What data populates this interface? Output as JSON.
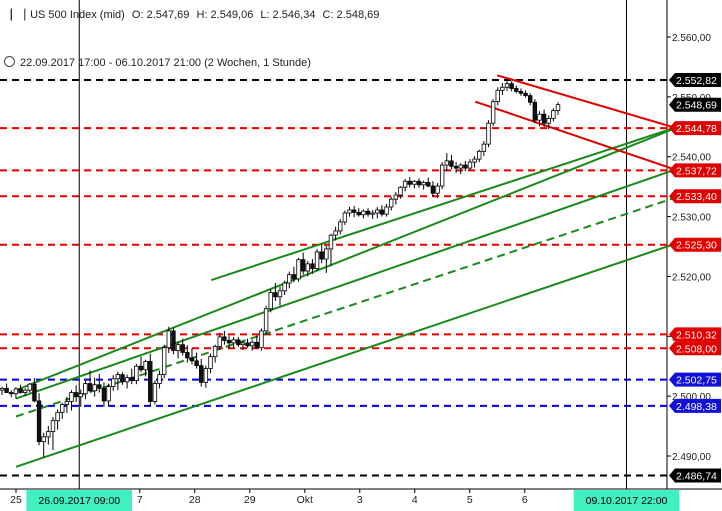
{
  "header": {
    "instrument": "US 500 Index (mid)",
    "open": "O: 2.547,69",
    "high": "H: 2.549,06",
    "low": "L: 2.546,34",
    "close": "C: 2.548,69"
  },
  "subheader": {
    "range": "22.09.2017 17:00 - 06.10.2017 21:00",
    "period": "(2 Wochen, 1 Stunde)"
  },
  "chart_data": {
    "type": "candlestick",
    "y_axis": {
      "min": 2485.0,
      "max": 2565.0,
      "ticks": [
        2490,
        2500,
        2510,
        2520,
        2530,
        2540,
        2550,
        2560
      ],
      "tick_labels": [
        "2.490,00",
        "2.500,00",
        "2.510,00",
        "2.520,00",
        "2.530,00",
        "2.540,00",
        "2.550,00",
        "2.560,00"
      ]
    },
    "x_axis": {
      "labels": [
        {
          "t": 0,
          "text": "25"
        },
        {
          "t": 2.25,
          "text": "7"
        },
        {
          "t": 3.25,
          "text": "28"
        },
        {
          "t": 4.25,
          "text": "29"
        },
        {
          "t": 5.25,
          "text": "Okt"
        },
        {
          "t": 6.25,
          "text": "3"
        },
        {
          "t": 7.25,
          "text": "4"
        },
        {
          "t": 8.25,
          "text": "5"
        },
        {
          "t": 9.25,
          "text": "6"
        }
      ],
      "markers": [
        {
          "t": 1.15,
          "text": "26.09.2017 09:00"
        },
        {
          "t": 11.1,
          "text": "09.10.2017 22:00"
        }
      ]
    },
    "horizontal_levels": [
      {
        "value": 2552.82,
        "label": "2.552,82",
        "color": "#000000",
        "tag_bg": "#000000"
      },
      {
        "value": 2548.69,
        "label": "2.548,69",
        "color": null,
        "tag_bg": "#000000"
      },
      {
        "value": 2544.78,
        "label": "2.544,78",
        "color": "#e00000",
        "tag_bg": "#e00000"
      },
      {
        "value": 2537.72,
        "label": "2.537,72",
        "color": "#e00000",
        "tag_bg": "#e00000"
      },
      {
        "value": 2533.4,
        "label": "2.533,40",
        "color": "#e00000",
        "tag_bg": "#e00000"
      },
      {
        "value": 2525.3,
        "label": "2.525,30",
        "color": "#e00000",
        "tag_bg": "#e00000"
      },
      {
        "value": 2510.32,
        "label": "2.510,32",
        "color": "#e00000",
        "tag_bg": "#e00000"
      },
      {
        "value": 2508.0,
        "label": "2.508,00",
        "color": "#e00000",
        "tag_bg": "#e00000"
      },
      {
        "value": 2502.75,
        "label": "2.502,75",
        "color": "#0000dd",
        "tag_bg": "#1010d8"
      },
      {
        "value": 2498.38,
        "label": "2.498,38",
        "color": "#0000dd",
        "tag_bg": "#1010d8"
      },
      {
        "value": 2486.74,
        "label": "2.486,74",
        "color": "#000000",
        "tag_bg": "#000000"
      }
    ],
    "trend_lines": [
      {
        "color": "#1a8a1a",
        "dashed": false,
        "t1": 0,
        "v1": 2501.0,
        "t2": 12.0,
        "v2": 2544.8
      },
      {
        "color": "#1a8a1a",
        "dashed": false,
        "t1": 3.55,
        "v1": 2519.4,
        "t2": 12.0,
        "v2": 2544.9
      },
      {
        "color": "#1a8a1a",
        "dashed": false,
        "t1": 0,
        "v1": 2499.6,
        "t2": 12.0,
        "v2": 2537.9
      },
      {
        "color": "#1a8a1a",
        "dashed": true,
        "t1": 0,
        "v1": 2496.6,
        "t2": 12.0,
        "v2": 2533.2
      },
      {
        "color": "#1a8a1a",
        "dashed": false,
        "t1": 0,
        "v1": 2488.2,
        "t2": 12.0,
        "v2": 2525.5
      },
      {
        "color": "#e00000",
        "dashed": false,
        "t1": 8.75,
        "v1": 2553.6,
        "t2": 12.0,
        "v2": 2544.8
      },
      {
        "color": "#e00000",
        "dashed": false,
        "t1": 8.35,
        "v1": 2549.2,
        "t2": 12.0,
        "v2": 2537.8
      }
    ],
    "vertical_lines": [
      1.15,
      11.1
    ],
    "candles": [
      [
        2501.0,
        2501.6,
        2500.2,
        2501.3
      ],
      [
        2501.3,
        2502.1,
        2500.8,
        2500.6
      ],
      [
        2500.6,
        2501.0,
        2499.8,
        2500.4
      ],
      [
        2500.4,
        2501.5,
        2499.6,
        2501.2
      ],
      [
        2501.2,
        2501.9,
        2500.4,
        2500.6
      ],
      [
        2500.6,
        2501.3,
        2500.0,
        2501.0
      ],
      [
        2501.0,
        2502.2,
        2500.6,
        2502.0
      ],
      [
        2502.0,
        2503.0,
        2499.0,
        2499.2
      ],
      [
        2499.2,
        2500.5,
        2491.8,
        2492.4
      ],
      [
        2492.4,
        2493.9,
        2489.8,
        2493.2
      ],
      [
        2493.2,
        2495.0,
        2491.9,
        2494.1
      ],
      [
        2494.1,
        2496.5,
        2491.0,
        2495.9
      ],
      [
        2495.9,
        2497.8,
        2494.4,
        2497.3
      ],
      [
        2497.3,
        2498.9,
        2496.2,
        2498.6
      ],
      [
        2498.6,
        2499.9,
        2497.2,
        2499.1
      ],
      [
        2499.1,
        2501.0,
        2497.6,
        2500.6
      ],
      [
        2500.6,
        2501.8,
        2499.0,
        2499.9
      ],
      [
        2499.9,
        2501.1,
        2498.2,
        2500.4
      ],
      [
        2500.4,
        2502.6,
        2499.5,
        2502.1
      ],
      [
        2502.1,
        2504.3,
        2500.6,
        2500.9
      ],
      [
        2500.9,
        2503.1,
        2499.9,
        2501.9
      ],
      [
        2501.9,
        2503.7,
        2500.6,
        2501.3
      ],
      [
        2501.3,
        2502.3,
        2498.2,
        2499.2
      ],
      [
        2499.2,
        2502.1,
        2498.4,
        2501.6
      ],
      [
        2501.6,
        2503.5,
        2500.9,
        2502.9
      ],
      [
        2502.9,
        2504.1,
        2501.0,
        2503.6
      ],
      [
        2503.6,
        2504.0,
        2501.9,
        2502.4
      ],
      [
        2502.4,
        2503.6,
        2501.3,
        2503.1
      ],
      [
        2503.1,
        2504.6,
        2502.0,
        2502.6
      ],
      [
        2502.6,
        2505.4,
        2502.0,
        2505.0
      ],
      [
        2505.0,
        2506.6,
        2504.0,
        2504.4
      ],
      [
        2504.4,
        2506.1,
        2503.3,
        2505.8
      ],
      [
        2505.8,
        2507.1,
        2498.4,
        2499.1
      ],
      [
        2499.1,
        2502.6,
        2498.6,
        2502.1
      ],
      [
        2502.1,
        2504.3,
        2501.3,
        2503.6
      ],
      [
        2503.6,
        2508.6,
        2503.0,
        2508.1
      ],
      [
        2508.1,
        2511.6,
        2507.2,
        2510.9
      ],
      [
        2510.9,
        2511.4,
        2507.0,
        2507.6
      ],
      [
        2507.6,
        2509.1,
        2506.3,
        2508.6
      ],
      [
        2508.6,
        2509.6,
        2506.8,
        2507.3
      ],
      [
        2507.3,
        2508.5,
        2505.6,
        2506.4
      ],
      [
        2506.4,
        2508.0,
        2505.3,
        2505.9
      ],
      [
        2505.9,
        2507.3,
        2504.6,
        2505.1
      ],
      [
        2505.1,
        2506.2,
        2501.6,
        2502.3
      ],
      [
        2502.3,
        2505.1,
        2501.4,
        2504.6
      ],
      [
        2504.6,
        2507.1,
        2503.8,
        2506.6
      ],
      [
        2506.6,
        2508.6,
        2505.6,
        2508.3
      ],
      [
        2508.3,
        2510.6,
        2507.7,
        2509.9
      ],
      [
        2509.9,
        2510.9,
        2508.6,
        2509.3
      ],
      [
        2509.3,
        2510.1,
        2507.9,
        2508.9
      ],
      [
        2508.9,
        2509.9,
        2508.0,
        2509.4
      ],
      [
        2509.4,
        2509.9,
        2508.2,
        2508.6
      ],
      [
        2508.6,
        2509.2,
        2507.7,
        2508.9
      ],
      [
        2508.9,
        2509.6,
        2508.1,
        2508.4
      ],
      [
        2508.4,
        2509.4,
        2507.6,
        2509.0
      ],
      [
        2509.0,
        2510.1,
        2507.9,
        2508.1
      ],
      [
        2508.1,
        2511.3,
        2507.6,
        2510.9
      ],
      [
        2510.9,
        2515.1,
        2510.3,
        2514.6
      ],
      [
        2514.6,
        2517.9,
        2514.0,
        2517.3
      ],
      [
        2517.3,
        2518.9,
        2515.9,
        2516.6
      ],
      [
        2516.6,
        2518.3,
        2515.1,
        2517.6
      ],
      [
        2517.6,
        2519.3,
        2516.9,
        2518.9
      ],
      [
        2518.9,
        2520.8,
        2518.0,
        2520.3
      ],
      [
        2520.3,
        2521.6,
        2519.0,
        2519.6
      ],
      [
        2519.6,
        2523.1,
        2519.1,
        2522.8
      ],
      [
        2522.8,
        2524.0,
        2520.3,
        2520.9
      ],
      [
        2520.9,
        2522.6,
        2520.0,
        2522.1
      ],
      [
        2522.1,
        2522.9,
        2520.4,
        2521.3
      ],
      [
        2521.3,
        2524.6,
        2520.9,
        2524.1
      ],
      [
        2524.1,
        2525.4,
        2522.2,
        2522.9
      ],
      [
        2522.9,
        2525.1,
        2520.6,
        2524.6
      ],
      [
        2524.6,
        2527.1,
        2521.8,
        2526.9
      ],
      [
        2526.9,
        2528.3,
        2526.0,
        2527.6
      ],
      [
        2527.6,
        2529.6,
        2527.0,
        2529.1
      ],
      [
        2529.1,
        2531.0,
        2528.6,
        2530.6
      ],
      [
        2530.6,
        2531.6,
        2530.0,
        2531.1
      ],
      [
        2531.1,
        2531.8,
        2529.9,
        2530.7
      ],
      [
        2530.7,
        2531.4,
        2530.0,
        2530.3
      ],
      [
        2530.3,
        2531.2,
        2529.7,
        2530.9
      ],
      [
        2530.9,
        2531.4,
        2530.0,
        2530.4
      ],
      [
        2530.4,
        2531.1,
        2529.6,
        2530.6
      ],
      [
        2530.6,
        2531.6,
        2529.7,
        2531.1
      ],
      [
        2531.1,
        2531.9,
        2530.0,
        2530.4
      ],
      [
        2530.4,
        2532.1,
        2530.0,
        2531.6
      ],
      [
        2531.6,
        2533.3,
        2531.0,
        2532.9
      ],
      [
        2532.9,
        2534.1,
        2532.0,
        2533.6
      ],
      [
        2533.6,
        2535.1,
        2533.0,
        2534.9
      ],
      [
        2534.9,
        2536.3,
        2534.2,
        2535.9
      ],
      [
        2535.9,
        2536.6,
        2534.9,
        2535.4
      ],
      [
        2535.4,
        2536.1,
        2534.7,
        2535.9
      ],
      [
        2535.9,
        2536.4,
        2534.8,
        2535.3
      ],
      [
        2535.3,
        2536.0,
        2534.5,
        2535.7
      ],
      [
        2535.7,
        2536.5,
        2534.9,
        2535.1
      ],
      [
        2535.1,
        2535.9,
        2533.3,
        2533.9
      ],
      [
        2533.9,
        2535.6,
        2533.1,
        2535.1
      ],
      [
        2535.1,
        2539.1,
        2534.6,
        2538.6
      ],
      [
        2538.6,
        2540.6,
        2537.6,
        2539.3
      ],
      [
        2539.3,
        2540.3,
        2537.9,
        2538.4
      ],
      [
        2538.4,
        2539.1,
        2537.3,
        2538.1
      ],
      [
        2538.1,
        2538.9,
        2537.1,
        2538.6
      ],
      [
        2538.6,
        2539.3,
        2537.6,
        2538.1
      ],
      [
        2538.1,
        2539.6,
        2537.7,
        2539.1
      ],
      [
        2539.1,
        2540.1,
        2538.2,
        2539.6
      ],
      [
        2539.6,
        2541.2,
        2539.1,
        2540.9
      ],
      [
        2540.9,
        2542.6,
        2540.1,
        2542.1
      ],
      [
        2542.1,
        2546.1,
        2541.6,
        2545.6
      ],
      [
        2545.6,
        2549.6,
        2545.1,
        2549.2
      ],
      [
        2549.2,
        2551.6,
        2548.6,
        2551.1
      ],
      [
        2551.1,
        2552.3,
        2550.3,
        2551.6
      ],
      [
        2551.6,
        2552.8,
        2551.0,
        2552.2
      ],
      [
        2552.2,
        2552.6,
        2550.9,
        2551.4
      ],
      [
        2551.4,
        2551.9,
        2550.6,
        2550.9
      ],
      [
        2550.9,
        2551.4,
        2550.2,
        2550.6
      ],
      [
        2550.6,
        2551.1,
        2549.9,
        2550.2
      ],
      [
        2550.2,
        2550.6,
        2548.6,
        2549.1
      ],
      [
        2549.1,
        2549.6,
        2545.6,
        2546.1
      ],
      [
        2546.1,
        2547.6,
        2545.1,
        2547.1
      ],
      [
        2547.1,
        2547.9,
        2545.0,
        2545.6
      ],
      [
        2545.6,
        2546.9,
        2544.6,
        2546.4
      ],
      [
        2546.4,
        2548.1,
        2545.9,
        2547.7
      ],
      [
        2547.7,
        2549.1,
        2547.0,
        2548.7
      ]
    ]
  },
  "colors": {
    "up": "#1a8a1a",
    "down": "#d00000",
    "marker_tag": "#40f0c0",
    "axis": "#000000"
  }
}
